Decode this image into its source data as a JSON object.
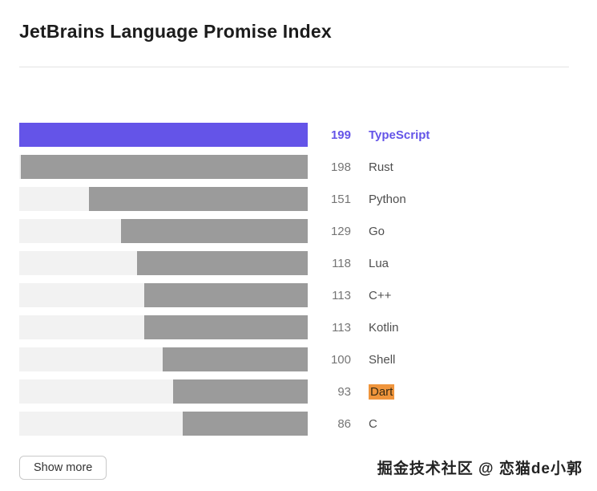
{
  "page": {
    "title": "JetBrains Language Promise Index"
  },
  "chart_data": {
    "type": "bar",
    "orientation": "horizontal",
    "title": "JetBrains Language Promise Index",
    "categories": [
      "TypeScript",
      "Rust",
      "Python",
      "Go",
      "Lua",
      "C++",
      "Kotlin",
      "Shell",
      "Dart",
      "C"
    ],
    "values": [
      199,
      198,
      151,
      129,
      118,
      113,
      113,
      100,
      93,
      86
    ],
    "max_value": 199,
    "highlighted_category": "TypeScript",
    "marked_category": "Dart",
    "bars_right_aligned": true,
    "grid": false,
    "colors": {
      "highlight_bar": "#6454e8",
      "bar": "#9b9b9b",
      "track": "#f2f2f2",
      "highlight_text": "#6454e8",
      "mark_bg": "#f0953c"
    }
  },
  "footer": {
    "show_more_label": "Show more",
    "watermark": "掘金技术社区 @ 恋猫de小郭"
  }
}
